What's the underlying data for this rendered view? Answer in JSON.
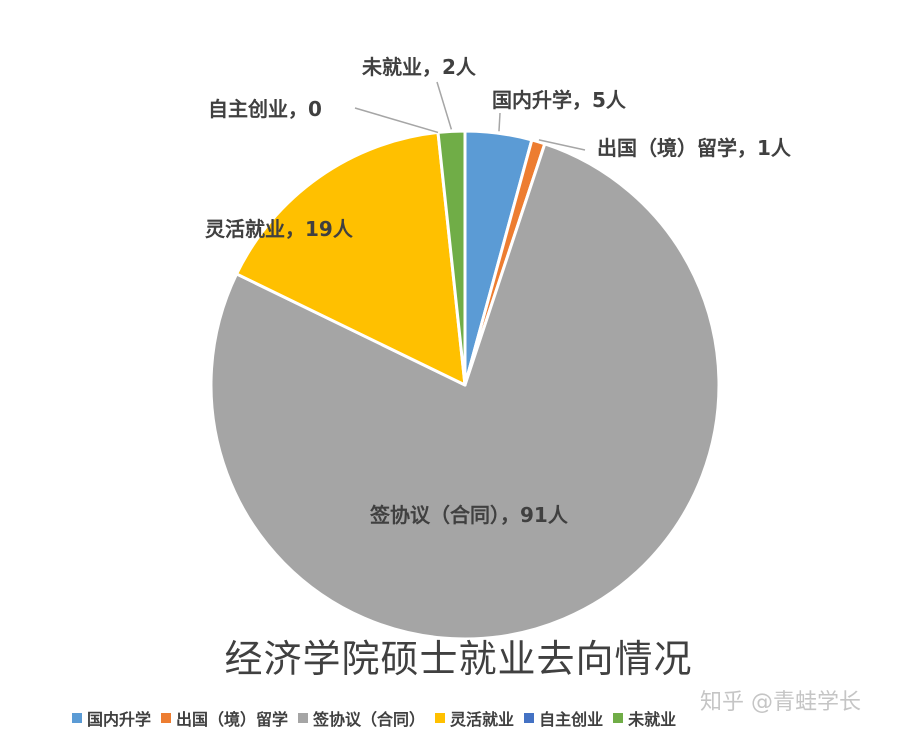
{
  "chart_data": {
    "type": "pie",
    "title": "经济学院硕士就业去向情况",
    "categories": [
      "国内升学",
      "出国（境）留学",
      "签协议（合同）",
      "灵活就业",
      "自主创业",
      "未就业"
    ],
    "values": [
      5,
      1,
      91,
      19,
      0,
      2
    ],
    "data_labels": [
      "国内升学，5人",
      "出国（境）留学，1人",
      "签协议（合同），91人",
      "灵活就业，19人",
      "自主创业，0",
      "未就业，2人"
    ],
    "colors": [
      "#5B9BD5",
      "#ED7D31",
      "#A5A5A5",
      "#FFC000",
      "#4472C4",
      "#70AD47"
    ],
    "legend_position": "bottom",
    "start_angle_deg": 0,
    "direction": "clockwise"
  },
  "watermark": "知乎 @青蛙学长"
}
